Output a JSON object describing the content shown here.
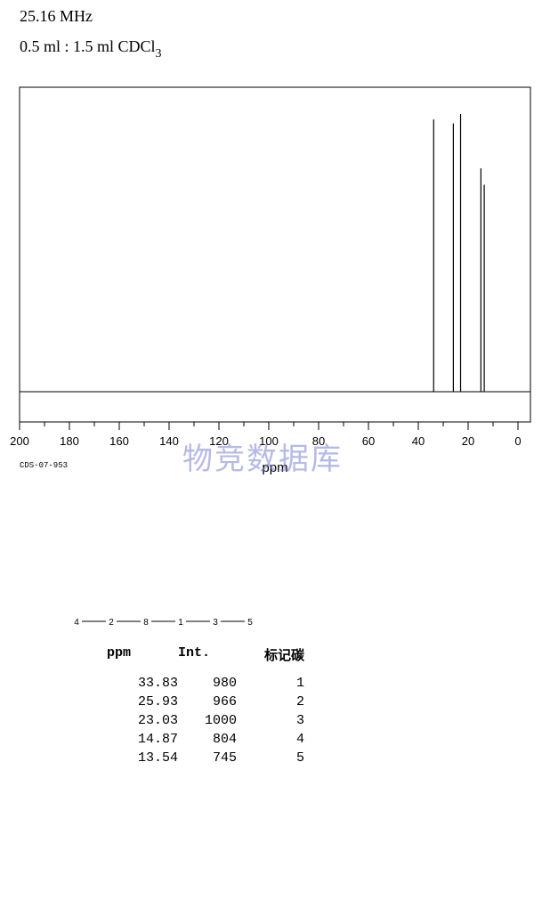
{
  "header": {
    "frequency": "25.16 MHz",
    "solvent_main": "0.5 ml : 1.5 ml CDCl",
    "solvent_sub": "3"
  },
  "spectrum_id": "CDS-07-953",
  "watermark": "物竞数据库",
  "chart_data": {
    "type": "line",
    "subtype": "nmr-stick-spectrum",
    "xlabel": "ppm",
    "xlim": [
      200,
      -5
    ],
    "ylim": [
      0,
      1100
    ],
    "x_ticks": [
      200,
      180,
      160,
      140,
      120,
      100,
      80,
      60,
      40,
      20,
      0
    ],
    "x_reversed": true,
    "peaks": [
      {
        "ppm": 33.83,
        "intensity": 980
      },
      {
        "ppm": 25.93,
        "intensity": 966
      },
      {
        "ppm": 23.03,
        "intensity": 1000
      },
      {
        "ppm": 14.87,
        "intensity": 804
      },
      {
        "ppm": 13.54,
        "intensity": 745
      }
    ]
  },
  "molecule": {
    "atoms": [
      "4",
      "2",
      "8",
      "1",
      "3",
      "5"
    ]
  },
  "table": {
    "headers": [
      "ppm",
      "Int.",
      "标记碳"
    ],
    "rows": [
      [
        "33.83",
        "980",
        "1"
      ],
      [
        "25.93",
        "966",
        "2"
      ],
      [
        "23.03",
        "1000",
        "3"
      ],
      [
        "14.87",
        "804",
        "4"
      ],
      [
        "13.54",
        "745",
        "5"
      ]
    ]
  }
}
